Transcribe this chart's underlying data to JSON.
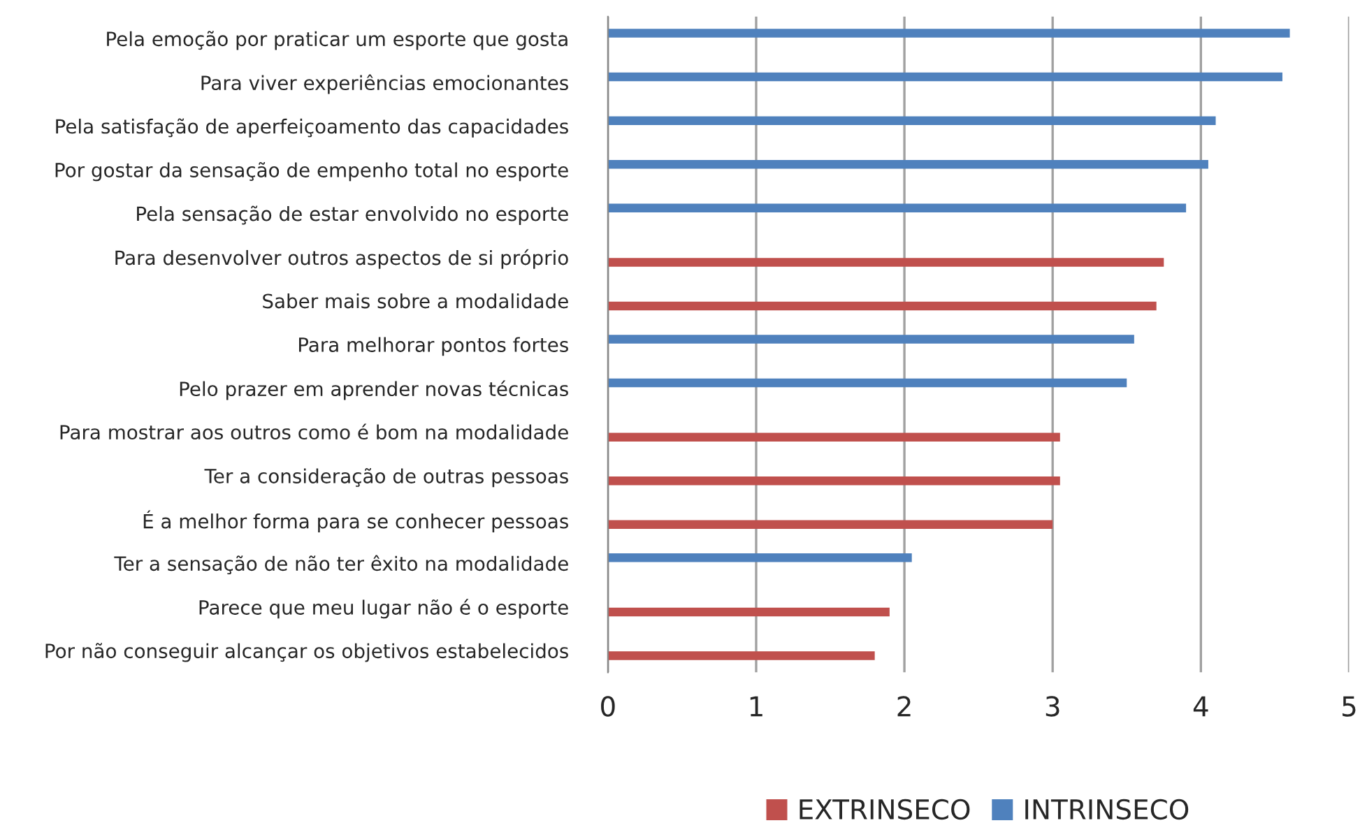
{
  "chart_data": {
    "type": "bar",
    "orientation": "horizontal",
    "categories": [
      "Pela emoção por praticar um esporte que gosta",
      "Para viver experiências emocionantes",
      "Pela satisfação de aperfeiçoamento das capacidades",
      "Por gostar da sensação de empenho total no esporte",
      "Pela sensação de estar envolvido no esporte",
      "Para desenvolver outros aspectos de si próprio",
      "Saber mais sobre a modalidade",
      "Para melhorar pontos fortes",
      "Pelo prazer em aprender novas técnicas",
      "Para mostrar aos outros como é bom na modalidade",
      "Ter a consideração de outras pessoas",
      "É a melhor forma para se conhecer pessoas",
      "Ter a sensação de não ter êxito na modalidade",
      "Parece que meu lugar não é o esporte",
      "Por não conseguir alcançar os objetivos estabelecidos"
    ],
    "series": [
      {
        "name": "EXTRINSECO",
        "color": "#c0504d",
        "values": [
          null,
          null,
          null,
          null,
          null,
          3.75,
          3.7,
          null,
          null,
          3.05,
          3.05,
          3.0,
          null,
          1.9,
          1.8
        ]
      },
      {
        "name": "INTRINSECO",
        "color": "#4f81bd",
        "values": [
          4.6,
          4.55,
          4.1,
          4.05,
          3.9,
          null,
          null,
          3.55,
          3.5,
          null,
          null,
          null,
          2.05,
          null,
          null
        ]
      }
    ],
    "xlim": [
      0,
      5
    ],
    "xticks": [
      0,
      1,
      2,
      3,
      4,
      5
    ],
    "grid": "x",
    "legend": "bottom"
  }
}
